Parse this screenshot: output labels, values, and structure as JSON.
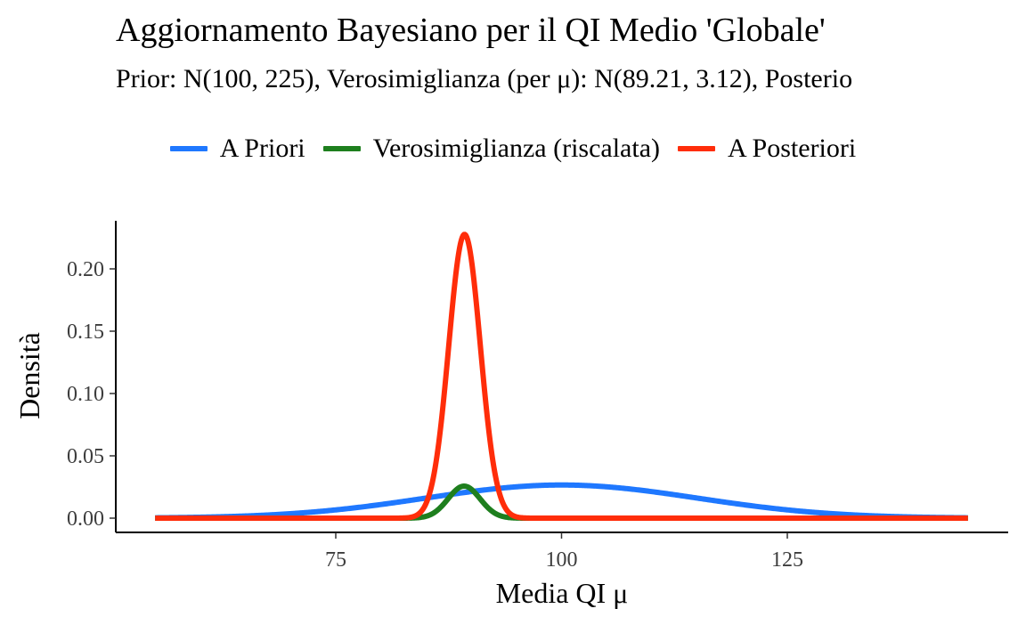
{
  "chart_data": {
    "type": "line",
    "title": "Aggiornamento Bayesiano per il QI Medio 'Globale'",
    "subtitle": "Prior: N(100, 225), Verosimiglianza (per μ): N(89.21, 3.12), Posterio",
    "xlabel": "Media QI μ",
    "ylabel": "Densità",
    "xlim": [
      55,
      145
    ],
    "ylim": [
      0,
      0.225
    ],
    "x_ticks": [
      75,
      100,
      125
    ],
    "y_ticks": [
      0,
      0.05,
      0.1,
      0.15,
      0.2
    ],
    "y_tick_labels": [
      "0.00",
      "0.05",
      "0.10",
      "0.15",
      "0.20"
    ],
    "grid": false,
    "legend_position": "top",
    "series": [
      {
        "name": "A Priori",
        "color": "#1f78ff",
        "distribution": "normal",
        "mean": 100,
        "variance": 225,
        "scale": 1
      },
      {
        "name": "Verosimiglianza (riscalata)",
        "color": "#1e7f1e",
        "distribution": "normal",
        "mean": 89.21,
        "variance": 3.12,
        "peak": 0.0257
      },
      {
        "name": "A Posteriori",
        "color": "#ff2d0a",
        "distribution": "normal",
        "mean": 89.26,
        "variance": 3.07,
        "peak": 0.2277
      }
    ]
  }
}
